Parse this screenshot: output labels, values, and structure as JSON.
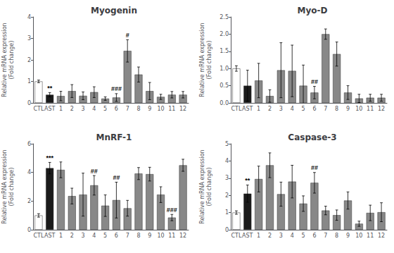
{
  "chart_data": [
    {
      "type": "bar",
      "title": "Myogenin",
      "ylabel": "Relative mRNA expression\n(Fold change)",
      "categories": [
        "CTL",
        "AST",
        "1",
        "2",
        "3",
        "4",
        "5",
        "6",
        "7",
        "8",
        "9",
        "10",
        "11",
        "12"
      ],
      "values": [
        1.0,
        0.38,
        0.32,
        0.55,
        0.33,
        0.5,
        0.2,
        0.25,
        2.42,
        1.32,
        0.55,
        0.28,
        0.38,
        0.38
      ],
      "errors": [
        0.06,
        0.1,
        0.22,
        0.3,
        0.18,
        0.25,
        0.08,
        0.18,
        0.52,
        0.35,
        0.4,
        0.12,
        0.15,
        0.15
      ],
      "colors": [
        "#ffffff",
        "#1a1a1a",
        "#888888",
        "#888888",
        "#888888",
        "#888888",
        "#888888",
        "#888888",
        "#888888",
        "#888888",
        "#888888",
        "#888888",
        "#888888",
        "#888888"
      ],
      "ylim": [
        0,
        4
      ],
      "yticks": [
        0,
        1,
        2,
        3,
        4
      ],
      "grid": false,
      "annotations": [
        {
          "category": "AST",
          "text": "**"
        },
        {
          "category": "6",
          "text": "###"
        },
        {
          "category": "7",
          "text": "#"
        }
      ]
    },
    {
      "type": "bar",
      "title": "Myo-D",
      "ylabel": "Relative mRNA expression\n(Fold change)",
      "categories": [
        "CTL",
        "AST",
        "1",
        "2",
        "3",
        "4",
        "5",
        "6",
        "7",
        "8",
        "9",
        "10",
        "11",
        "12"
      ],
      "values": [
        1.0,
        0.5,
        0.65,
        0.2,
        0.95,
        0.93,
        0.5,
        0.3,
        2.0,
        1.42,
        0.3,
        0.13,
        0.15,
        0.15
      ],
      "errors": [
        0.08,
        0.45,
        0.5,
        0.18,
        0.8,
        0.75,
        0.6,
        0.18,
        0.15,
        0.35,
        0.2,
        0.12,
        0.1,
        0.1
      ],
      "colors": [
        "#ffffff",
        "#1a1a1a",
        "#888888",
        "#888888",
        "#888888",
        "#888888",
        "#888888",
        "#888888",
        "#888888",
        "#888888",
        "#888888",
        "#888888",
        "#888888",
        "#888888"
      ],
      "ylim": [
        0,
        2.5
      ],
      "yticks": [
        {
          "value": 0,
          "label": "0.0"
        },
        0.5,
        {
          "value": 1,
          "label": "1.0"
        },
        1.5,
        {
          "value": 2,
          "label": "2.0"
        },
        2.5
      ],
      "grid": false,
      "annotations": [
        {
          "category": "6",
          "text": "##"
        }
      ]
    },
    {
      "type": "bar",
      "title": "MnRF-1",
      "ylabel": "Relative mRNA expression\n(Fold change)",
      "categories": [
        "CTL",
        "AST",
        "1",
        "2",
        "3",
        "4",
        "5",
        "6",
        "7",
        "8",
        "9",
        "10",
        "11",
        "12"
      ],
      "values": [
        1.0,
        4.3,
        4.18,
        2.35,
        2.45,
        3.1,
        1.68,
        2.07,
        1.5,
        3.92,
        3.88,
        2.45,
        0.85,
        4.5
      ],
      "errors": [
        0.12,
        0.4,
        0.55,
        0.55,
        1.5,
        0.68,
        0.75,
        1.25,
        0.55,
        0.42,
        0.48,
        0.55,
        0.22,
        0.42
      ],
      "colors": [
        "#ffffff",
        "#1a1a1a",
        "#888888",
        "#888888",
        "#888888",
        "#888888",
        "#888888",
        "#888888",
        "#888888",
        "#888888",
        "#888888",
        "#888888",
        "#888888",
        "#888888"
      ],
      "ylim": [
        0,
        6
      ],
      "yticks": [
        0,
        2,
        4,
        6
      ],
      "grid": false,
      "annotations": [
        {
          "category": "AST",
          "text": "***"
        },
        {
          "category": "4",
          "text": "##"
        },
        {
          "category": "6",
          "text": "##"
        },
        {
          "category": "11",
          "text": "###"
        }
      ]
    },
    {
      "type": "bar",
      "title": "Caspase-3",
      "ylabel": "Relative mRNA expression\n(Fold change)",
      "categories": [
        "CTL",
        "AST",
        "1",
        "2",
        "3",
        "4",
        "5",
        "6",
        "7",
        "8",
        "9",
        "10",
        "11",
        "12"
      ],
      "values": [
        1.0,
        2.1,
        2.95,
        3.75,
        2.07,
        2.8,
        1.52,
        2.73,
        1.12,
        0.85,
        1.7,
        0.35,
        0.98,
        1.02
      ],
      "errors": [
        0.1,
        0.5,
        0.75,
        0.72,
        0.7,
        0.95,
        0.45,
        0.6,
        0.25,
        0.3,
        0.5,
        0.15,
        0.45,
        0.55
      ],
      "colors": [
        "#ffffff",
        "#1a1a1a",
        "#888888",
        "#888888",
        "#888888",
        "#888888",
        "#888888",
        "#888888",
        "#888888",
        "#888888",
        "#888888",
        "#888888",
        "#888888",
        "#888888"
      ],
      "ylim": [
        0,
        5
      ],
      "yticks": [
        0,
        1,
        2,
        3,
        4,
        5
      ],
      "grid": false,
      "annotations": [
        {
          "category": "AST",
          "text": "**"
        },
        {
          "category": "6",
          "text": "##"
        }
      ]
    }
  ]
}
